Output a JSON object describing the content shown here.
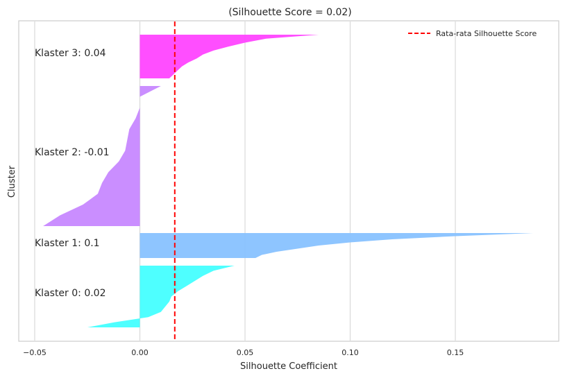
{
  "chart_data": {
    "type": "area",
    "title": "(Silhouette Score = 0.02)",
    "xlabel": "Silhouette Coefficient",
    "ylabel": "Cluster",
    "xlim": [
      -0.05,
      0.2
    ],
    "xticks": [
      -0.05,
      0.0,
      0.05,
      0.1,
      0.15
    ],
    "xtick_labels": [
      "−0.05",
      "0.00",
      "0.05",
      "0.10",
      "0.15"
    ],
    "grid": "vertical",
    "average_line": {
      "value": 0.0166,
      "label": "Rata-rata Silhouette Score",
      "color": "#ff0000",
      "style": "dashed"
    },
    "legend_position": "top-right",
    "clusters": [
      {
        "label": "Klaster 0: 0.02",
        "color": "#44ffff",
        "sorted_values": [
          0.045,
          0.035,
          0.03,
          0.026,
          0.022,
          0.018,
          0.015,
          0.014,
          0.012,
          0.01,
          0.004,
          -0.012,
          -0.025
        ]
      },
      {
        "label": "Klaster 1: 0.1",
        "color": "#88c2ff",
        "sorted_values": [
          0.187,
          0.15,
          0.12,
          0.1,
          0.085,
          0.075,
          0.065,
          0.058,
          0.055
        ]
      },
      {
        "label": "Klaster 2: -0.01",
        "color": "#c788ff",
        "sorted_values": [
          0.01,
          0.0,
          0.0,
          -0.002,
          -0.005,
          -0.006,
          -0.007,
          -0.01,
          -0.015,
          -0.018,
          -0.02,
          -0.027,
          -0.038,
          -0.046
        ]
      },
      {
        "label": "Klaster 3: 0.04",
        "color": "#ff44ff",
        "sorted_values": [
          0.085,
          0.06,
          0.05,
          0.042,
          0.035,
          0.03,
          0.027,
          0.023,
          0.02,
          0.018,
          0.016,
          0.014
        ]
      }
    ]
  }
}
